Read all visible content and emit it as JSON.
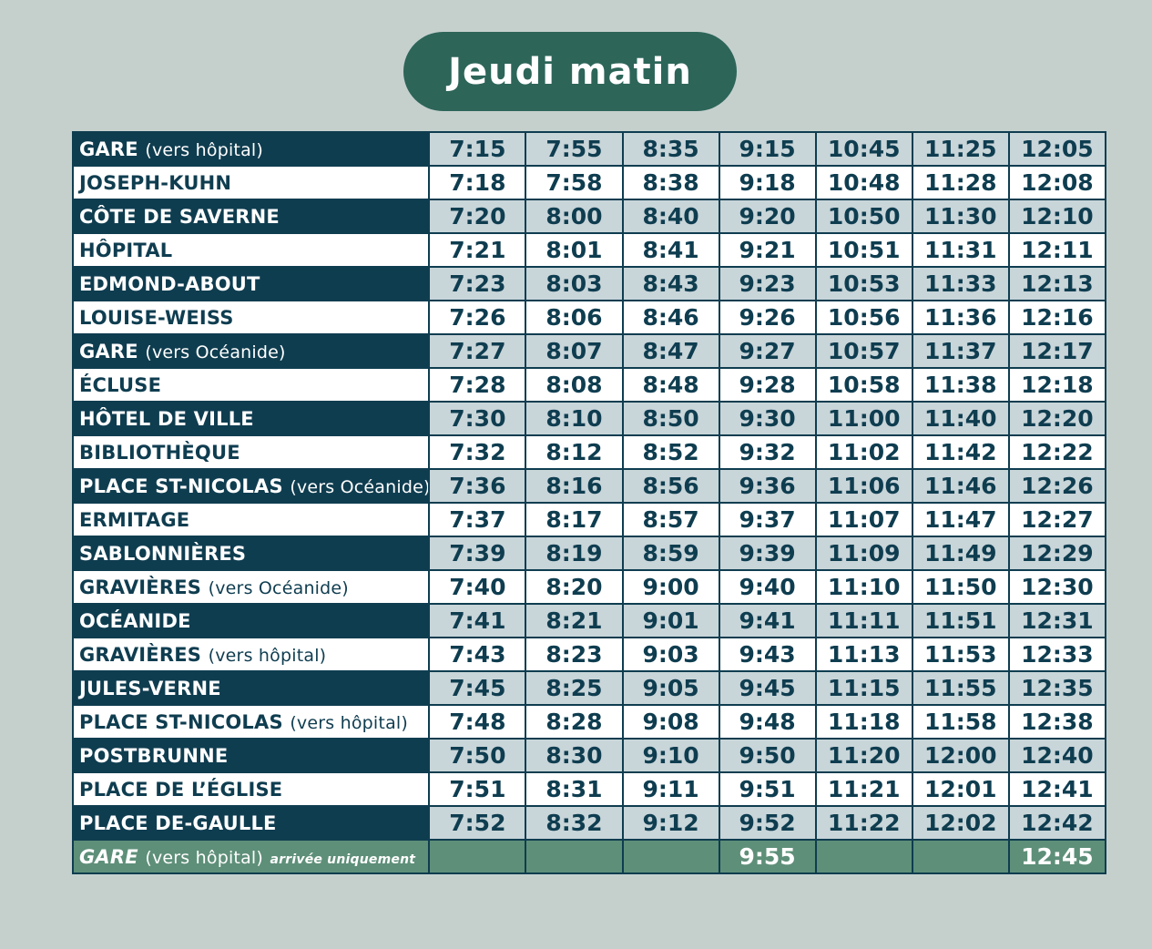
{
  "title": "Jeudi matin",
  "rows": [
    {
      "name": "GARE",
      "note": "(vers hôpital)",
      "times": [
        "7:15",
        "7:55",
        "8:35",
        "9:15",
        "10:45",
        "11:25",
        "12:05"
      ]
    },
    {
      "name": "JOSEPH-KUHN",
      "note": "",
      "times": [
        "7:18",
        "7:58",
        "8:38",
        "9:18",
        "10:48",
        "11:28",
        "12:08"
      ]
    },
    {
      "name": "CÔTE DE SAVERNE",
      "note": "",
      "times": [
        "7:20",
        "8:00",
        "8:40",
        "9:20",
        "10:50",
        "11:30",
        "12:10"
      ]
    },
    {
      "name": "HÔPITAL",
      "note": "",
      "times": [
        "7:21",
        "8:01",
        "8:41",
        "9:21",
        "10:51",
        "11:31",
        "12:11"
      ]
    },
    {
      "name": "EDMOND-ABOUT",
      "note": "",
      "times": [
        "7:23",
        "8:03",
        "8:43",
        "9:23",
        "10:53",
        "11:33",
        "12:13"
      ]
    },
    {
      "name": "LOUISE-WEISS",
      "note": "",
      "times": [
        "7:26",
        "8:06",
        "8:46",
        "9:26",
        "10:56",
        "11:36",
        "12:16"
      ]
    },
    {
      "name": "GARE",
      "note": "(vers Océanide)",
      "times": [
        "7:27",
        "8:07",
        "8:47",
        "9:27",
        "10:57",
        "11:37",
        "12:17"
      ]
    },
    {
      "name": "ÉCLUSE",
      "note": "",
      "times": [
        "7:28",
        "8:08",
        "8:48",
        "9:28",
        "10:58",
        "11:38",
        "12:18"
      ]
    },
    {
      "name": "HÔTEL DE VILLE",
      "note": "",
      "times": [
        "7:30",
        "8:10",
        "8:50",
        "9:30",
        "11:00",
        "11:40",
        "12:20"
      ]
    },
    {
      "name": "BIBLIOTHÈQUE",
      "note": "",
      "times": [
        "7:32",
        "8:12",
        "8:52",
        "9:32",
        "11:02",
        "11:42",
        "12:22"
      ]
    },
    {
      "name": "PLACE ST-NICOLAS",
      "note": "(vers Océanide)",
      "times": [
        "7:36",
        "8:16",
        "8:56",
        "9:36",
        "11:06",
        "11:46",
        "12:26"
      ]
    },
    {
      "name": "ERMITAGE",
      "note": "",
      "times": [
        "7:37",
        "8:17",
        "8:57",
        "9:37",
        "11:07",
        "11:47",
        "12:27"
      ]
    },
    {
      "name": "SABLONNIÈRES",
      "note": "",
      "times": [
        "7:39",
        "8:19",
        "8:59",
        "9:39",
        "11:09",
        "11:49",
        "12:29"
      ]
    },
    {
      "name": "GRAVIÈRES",
      "note": "(vers Océanide)",
      "times": [
        "7:40",
        "8:20",
        "9:00",
        "9:40",
        "11:10",
        "11:50",
        "12:30"
      ]
    },
    {
      "name": "OCÉANIDE",
      "note": "",
      "times": [
        "7:41",
        "8:21",
        "9:01",
        "9:41",
        "11:11",
        "11:51",
        "12:31"
      ]
    },
    {
      "name": "GRAVIÈRES",
      "note": "(vers hôpital)",
      "times": [
        "7:43",
        "8:23",
        "9:03",
        "9:43",
        "11:13",
        "11:53",
        "12:33"
      ]
    },
    {
      "name": "JULES-VERNE",
      "note": "",
      "times": [
        "7:45",
        "8:25",
        "9:05",
        "9:45",
        "11:15",
        "11:55",
        "12:35"
      ]
    },
    {
      "name": "PLACE ST-NICOLAS",
      "note": "(vers hôpital)",
      "times": [
        "7:48",
        "8:28",
        "9:08",
        "9:48",
        "11:18",
        "11:58",
        "12:38"
      ]
    },
    {
      "name": "POSTBRUNNE",
      "note": "",
      "times": [
        "7:50",
        "8:30",
        "9:10",
        "9:50",
        "11:20",
        "12:00",
        "12:40"
      ]
    },
    {
      "name": "PLACE DE L’ÉGLISE",
      "note": "",
      "times": [
        "7:51",
        "8:31",
        "9:11",
        "9:51",
        "11:21",
        "12:01",
        "12:41"
      ]
    },
    {
      "name": "PLACE DE-GAULLE",
      "note": "",
      "times": [
        "7:52",
        "8:32",
        "9:12",
        "9:52",
        "11:22",
        "12:02",
        "12:42"
      ]
    }
  ],
  "final_row": {
    "name": "GARE",
    "note": "(vers hôpital)",
    "arrival_note": "arrivée uniquement",
    "times": [
      "",
      "",
      "",
      "9:55",
      "",
      "",
      "12:45"
    ]
  },
  "colors": {
    "background": "#c5d0cd",
    "title_pill": "#2d6559",
    "dark_row": "#0f3d50",
    "time_shade": "#c8d5d9",
    "final_row": "#5e8f79"
  }
}
